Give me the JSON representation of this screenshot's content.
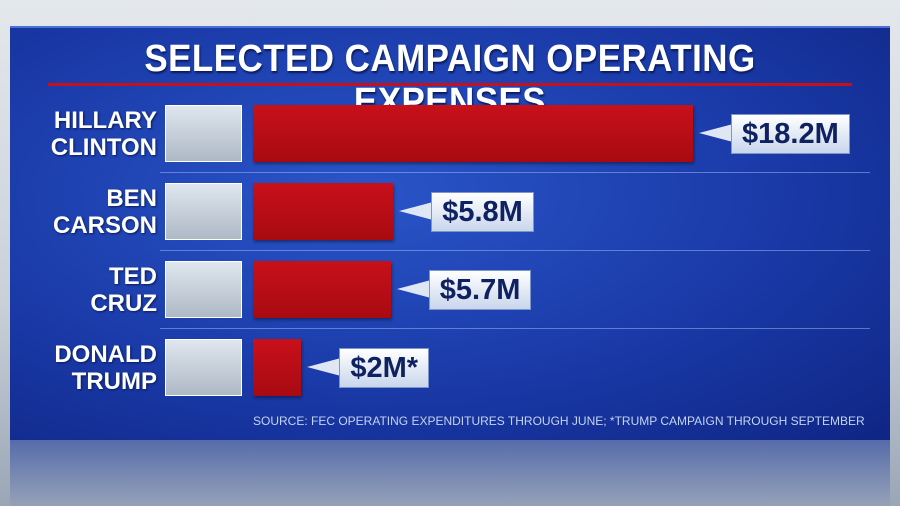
{
  "chart_data": {
    "type": "bar",
    "orientation": "horizontal",
    "title": "SELECTED CAMPAIGN OPERATING EXPENSES",
    "categories": [
      "HILLARY CLINTON",
      "BEN CARSON",
      "TED CRUZ",
      "DONALD TRUMP"
    ],
    "values": [
      18.2,
      5.8,
      5.7,
      2
    ],
    "value_labels": [
      "$18.2M",
      "$5.8M",
      "$5.7M",
      "$2M*"
    ],
    "color": "#c8101a",
    "source": "SOURCE: FEC OPERATING EXPENDITURES THROUGH JUNE; *TRUMP CAMPAIGN THROUGH SEPTEMBER"
  }
}
